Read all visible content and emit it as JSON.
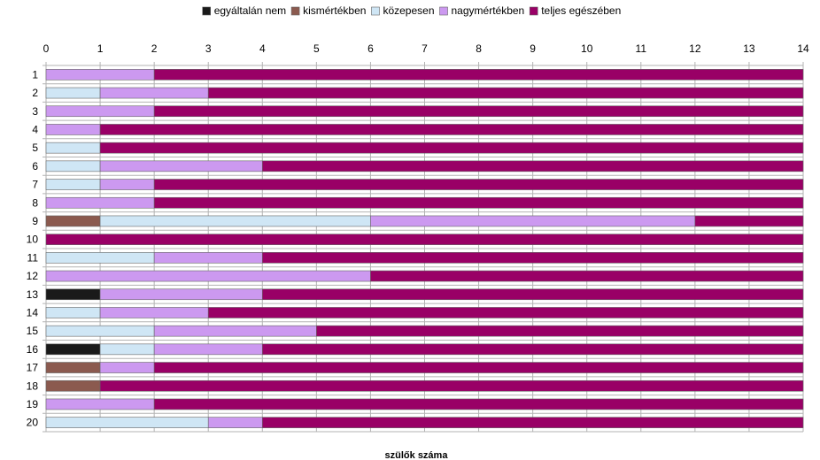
{
  "chart_data": {
    "type": "bar",
    "orientation": "horizontal",
    "stacked": true,
    "title": "",
    "xlabel": "szülők száma",
    "ylabel": "",
    "xlim": [
      0,
      14
    ],
    "x_ticks": [
      0,
      1,
      2,
      3,
      4,
      5,
      6,
      7,
      8,
      9,
      10,
      11,
      12,
      13,
      14
    ],
    "x_axis_position": "top",
    "grid": true,
    "legend_position": "top",
    "categories": [
      "1",
      "2",
      "3",
      "4",
      "5",
      "6",
      "7",
      "8",
      "9",
      "10",
      "11",
      "12",
      "13",
      "14",
      "15",
      "16",
      "17",
      "18",
      "19",
      "20"
    ],
    "series": [
      {
        "name": "egyáltalán nem",
        "color": "#1a1a1a",
        "values": [
          0,
          0,
          0,
          0,
          0,
          0,
          0,
          0,
          0,
          0,
          0,
          0,
          1,
          0,
          0,
          1,
          0,
          0,
          0,
          0
        ]
      },
      {
        "name": "kismértékben",
        "color": "#8b5a4f",
        "values": [
          0,
          0,
          0,
          0,
          0,
          0,
          0,
          0,
          1,
          0,
          0,
          0,
          0,
          0,
          0,
          0,
          1,
          1,
          0,
          0
        ]
      },
      {
        "name": "közepesen",
        "color": "#cfe6f5",
        "values": [
          0,
          1,
          0,
          0,
          1,
          1,
          1,
          0,
          5,
          0,
          2,
          0,
          0,
          1,
          2,
          1,
          0,
          0,
          0,
          3
        ]
      },
      {
        "name": "nagymértékben",
        "color": "#cc99f0",
        "values": [
          2,
          2,
          2,
          1,
          0,
          3,
          1,
          2,
          6,
          0,
          2,
          6,
          3,
          2,
          3,
          2,
          1,
          0,
          2,
          1
        ]
      },
      {
        "name": "teljes egészében",
        "color": "#990066",
        "values": [
          12,
          11,
          12,
          13,
          13,
          10,
          12,
          12,
          2,
          14,
          10,
          8,
          10,
          11,
          9,
          10,
          12,
          13,
          12,
          10
        ]
      }
    ]
  }
}
